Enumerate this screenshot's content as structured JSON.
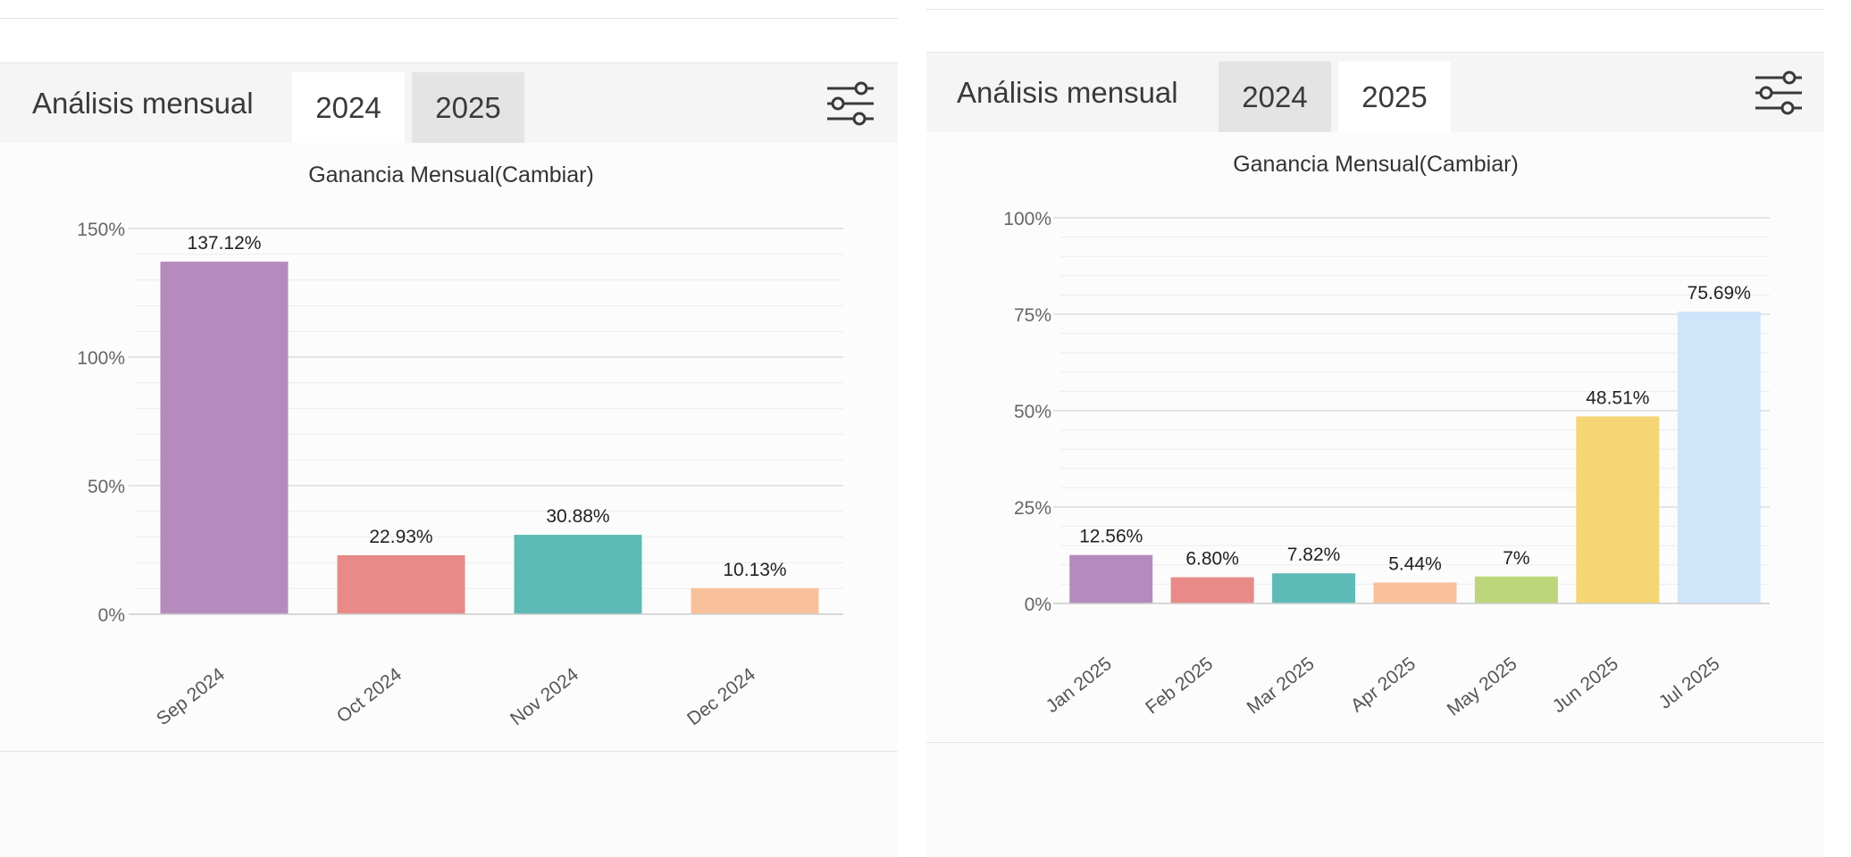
{
  "panels": [
    {
      "header": {
        "title": "Análisis mensual",
        "tabs": [
          "2024",
          "2025"
        ],
        "active_tab": "2024"
      },
      "icon": "filter-sliders-icon"
    },
    {
      "header": {
        "title": "Análisis mensual",
        "tabs": [
          "2024",
          "2025"
        ],
        "active_tab": "2025"
      },
      "icon": "filter-sliders-icon"
    }
  ],
  "chart_data": [
    {
      "type": "bar",
      "title": "Ganancia Mensual(Cambiar)",
      "categories": [
        "Sep 2024",
        "Oct 2024",
        "Nov 2024",
        "Dec 2024"
      ],
      "values": [
        137.12,
        22.93,
        30.88,
        10.13
      ],
      "data_labels": [
        "137.12%",
        "22.93%",
        "30.88%",
        "10.13%"
      ],
      "colors": [
        "#b58bbd",
        "#e88a87",
        "#5dbab6",
        "#f8c19c"
      ],
      "yticks": [
        0,
        50,
        100,
        150
      ],
      "ytick_labels": [
        "0%",
        "50%",
        "100%",
        "150%"
      ],
      "ylim": [
        0,
        150
      ],
      "xlabel": "",
      "ylabel": "",
      "grid": true
    },
    {
      "type": "bar",
      "title": "Ganancia Mensual(Cambiar)",
      "categories": [
        "Jan 2025",
        "Feb 2025",
        "Mar 2025",
        "Apr 2025",
        "May 2025",
        "Jun 2025",
        "Jul 2025"
      ],
      "values": [
        12.56,
        6.8,
        7.82,
        5.44,
        7,
        48.51,
        75.69
      ],
      "data_labels": [
        "12.56%",
        "6.80%",
        "7.82%",
        "5.44%",
        "7%",
        "48.51%",
        "75.69%"
      ],
      "colors": [
        "#b58bbd",
        "#e88a87",
        "#5dbab6",
        "#f8c19c",
        "#bcd77a",
        "#f5d574",
        "#cfe6fa"
      ],
      "yticks": [
        0,
        25,
        50,
        75,
        100
      ],
      "ytick_labels": [
        "0%",
        "25%",
        "50%",
        "75%",
        "100%"
      ],
      "ylim": [
        0,
        100
      ],
      "xlabel": "",
      "ylabel": "",
      "grid": true
    }
  ]
}
